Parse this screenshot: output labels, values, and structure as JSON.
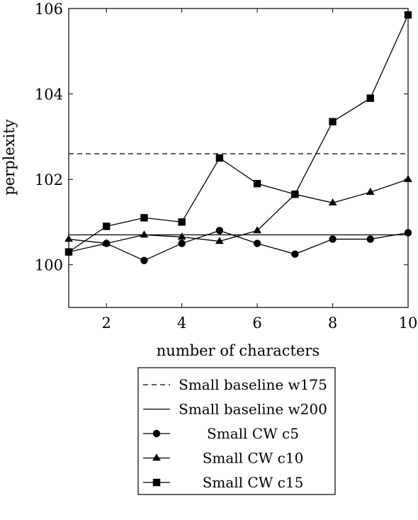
{
  "chart_data": {
    "type": "line",
    "xlabel": "number of characters",
    "ylabel": "perplexity",
    "xlim": [
      1,
      10
    ],
    "ylim": [
      99,
      106
    ],
    "xticks": [
      2,
      4,
      6,
      8,
      10
    ],
    "yticks": [
      100,
      102,
      104,
      106
    ],
    "grid": false,
    "legend_position": "bottom",
    "series": [
      {
        "name": "Small baseline w175",
        "style": "dashed",
        "marker": "none",
        "x": [
          1,
          10
        ],
        "y": [
          102.6,
          102.6
        ]
      },
      {
        "name": "Small baseline w200",
        "style": "solid",
        "marker": "none",
        "x": [
          1,
          10
        ],
        "y": [
          100.7,
          100.7
        ]
      },
      {
        "name": "Small CW c5",
        "style": "solid",
        "marker": "circle",
        "x": [
          1,
          2,
          3,
          4,
          5,
          6,
          7,
          8,
          9,
          10
        ],
        "y": [
          100.3,
          100.5,
          100.1,
          100.5,
          100.8,
          100.5,
          100.25,
          100.6,
          100.6,
          100.75
        ]
      },
      {
        "name": "Small CW c10",
        "style": "solid",
        "marker": "triangle",
        "x": [
          1,
          2,
          3,
          4,
          5,
          6,
          7,
          8,
          9,
          10
        ],
        "y": [
          100.6,
          100.5,
          100.7,
          100.65,
          100.55,
          100.8,
          101.65,
          101.45,
          101.7,
          102.0
        ]
      },
      {
        "name": "Small CW c15",
        "style": "solid",
        "marker": "square",
        "x": [
          1,
          2,
          3,
          4,
          5,
          6,
          7,
          8,
          9,
          10
        ],
        "y": [
          100.3,
          100.9,
          101.1,
          101.0,
          102.5,
          101.9,
          101.65,
          103.35,
          103.9,
          105.85
        ]
      }
    ]
  }
}
